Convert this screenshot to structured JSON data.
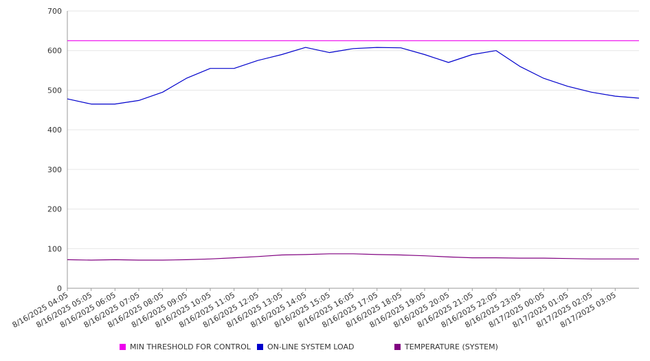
{
  "chart_data": {
    "type": "line",
    "title": "",
    "xlabel": "",
    "ylabel": "",
    "ylim": [
      0,
      700
    ],
    "yticks": [
      0,
      100,
      200,
      300,
      400,
      500,
      600,
      700
    ],
    "grid": true,
    "legend_position": "bottom",
    "x_tick_labels": [
      "8/16/2025 04:05",
      "8/16/2025 05:05",
      "8/16/2025 06:05",
      "8/16/2025 07:05",
      "8/16/2025 08:05",
      "8/16/2025 09:05",
      "8/16/2025 10:05",
      "8/16/2025 11:05",
      "8/16/2025 12:05",
      "8/16/2025 13:05",
      "8/16/2025 14:05",
      "8/16/2025 15:05",
      "8/16/2025 16:05",
      "8/16/2025 17:05",
      "8/16/2025 18:05",
      "8/16/2025 19:05",
      "8/16/2025 20:05",
      "8/16/2025 21:05",
      "8/16/2025 22:05",
      "8/16/2025 23:05",
      "8/17/2025 00:05",
      "8/17/2025 01:05",
      "8/17/2025 02:05",
      "8/17/2025 03:05"
    ],
    "x_hours": [
      0,
      1,
      2,
      3,
      4,
      5,
      6,
      7,
      8,
      9,
      10,
      11,
      12,
      13,
      14,
      15,
      16,
      17,
      18,
      19,
      20,
      21,
      22,
      23,
      24
    ],
    "series": [
      {
        "name": "MIN THRESHOLD FOR CONTROL",
        "color": "#ee00ee",
        "values": [
          625,
          625,
          625,
          625,
          625,
          625,
          625,
          625,
          625,
          625,
          625,
          625,
          625,
          625,
          625,
          625,
          625,
          625,
          625,
          625,
          625,
          625,
          625,
          625,
          625
        ]
      },
      {
        "name": "ON-LINE SYSTEM LOAD",
        "color": "#0000cc",
        "values": [
          478,
          465,
          465,
          474,
          495,
          530,
          555,
          555,
          575,
          590,
          608,
          595,
          605,
          608,
          607,
          590,
          570,
          590,
          600,
          560,
          530,
          510,
          495,
          485,
          480
        ]
      },
      {
        "name": "TEMPERATURE (SYSTEM)",
        "color": "#800080",
        "values": [
          72,
          71,
          72,
          71,
          71,
          72,
          74,
          77,
          80,
          84,
          85,
          87,
          87,
          85,
          84,
          82,
          79,
          77,
          77,
          76,
          76,
          75,
          74,
          74,
          74
        ]
      }
    ]
  }
}
